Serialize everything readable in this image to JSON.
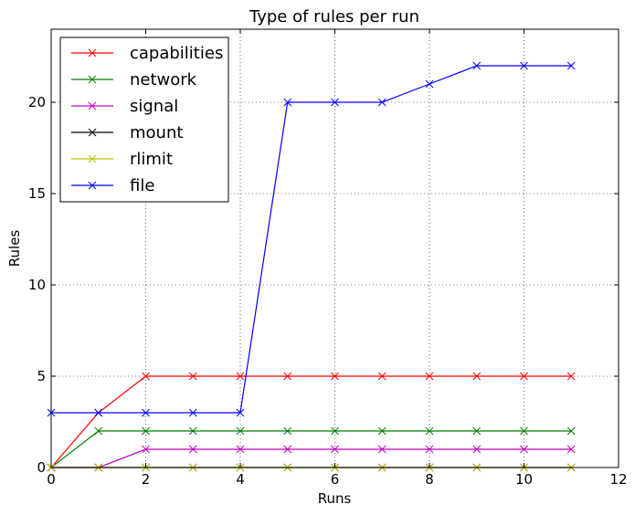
{
  "chart_data": {
    "type": "line",
    "title": "Type of rules per run",
    "xlabel": "Runs",
    "ylabel": "Rules",
    "xlim": [
      0,
      12
    ],
    "ylim": [
      0,
      24
    ],
    "xticks": [
      "0",
      "2",
      "4",
      "6",
      "8",
      "10",
      "12"
    ],
    "yticks": [
      "0",
      "5",
      "10",
      "15",
      "20"
    ],
    "grid": true,
    "legend_position": "top-left",
    "x": [
      0,
      1,
      2,
      3,
      4,
      5,
      6,
      7,
      8,
      9,
      10,
      11
    ],
    "series": [
      {
        "name": "capabilities",
        "color": "#ff0000",
        "marker": "x",
        "values": [
          0,
          3,
          5,
          5,
          5,
          5,
          5,
          5,
          5,
          5,
          5,
          5
        ]
      },
      {
        "name": "network",
        "color": "#008000",
        "marker": "x",
        "values": [
          0,
          2,
          2,
          2,
          2,
          2,
          2,
          2,
          2,
          2,
          2,
          2
        ]
      },
      {
        "name": "signal",
        "color": "#bf00bf",
        "marker": "x",
        "values": [
          0,
          0,
          1,
          1,
          1,
          1,
          1,
          1,
          1,
          1,
          1,
          1
        ]
      },
      {
        "name": "mount",
        "color": "#000000",
        "marker": "x",
        "values": [
          0,
          0,
          0,
          0,
          0,
          0,
          0,
          0,
          0,
          0,
          0,
          0
        ]
      },
      {
        "name": "rlimit",
        "color": "#bfbf00",
        "marker": "x",
        "values": [
          0,
          0,
          0,
          0,
          0,
          0,
          0,
          0,
          0,
          0,
          0,
          0
        ]
      },
      {
        "name": "file",
        "color": "#0000ff",
        "marker": "x",
        "values": [
          3,
          3,
          3,
          3,
          3,
          20,
          20,
          20,
          21,
          22,
          22,
          22
        ]
      }
    ]
  }
}
